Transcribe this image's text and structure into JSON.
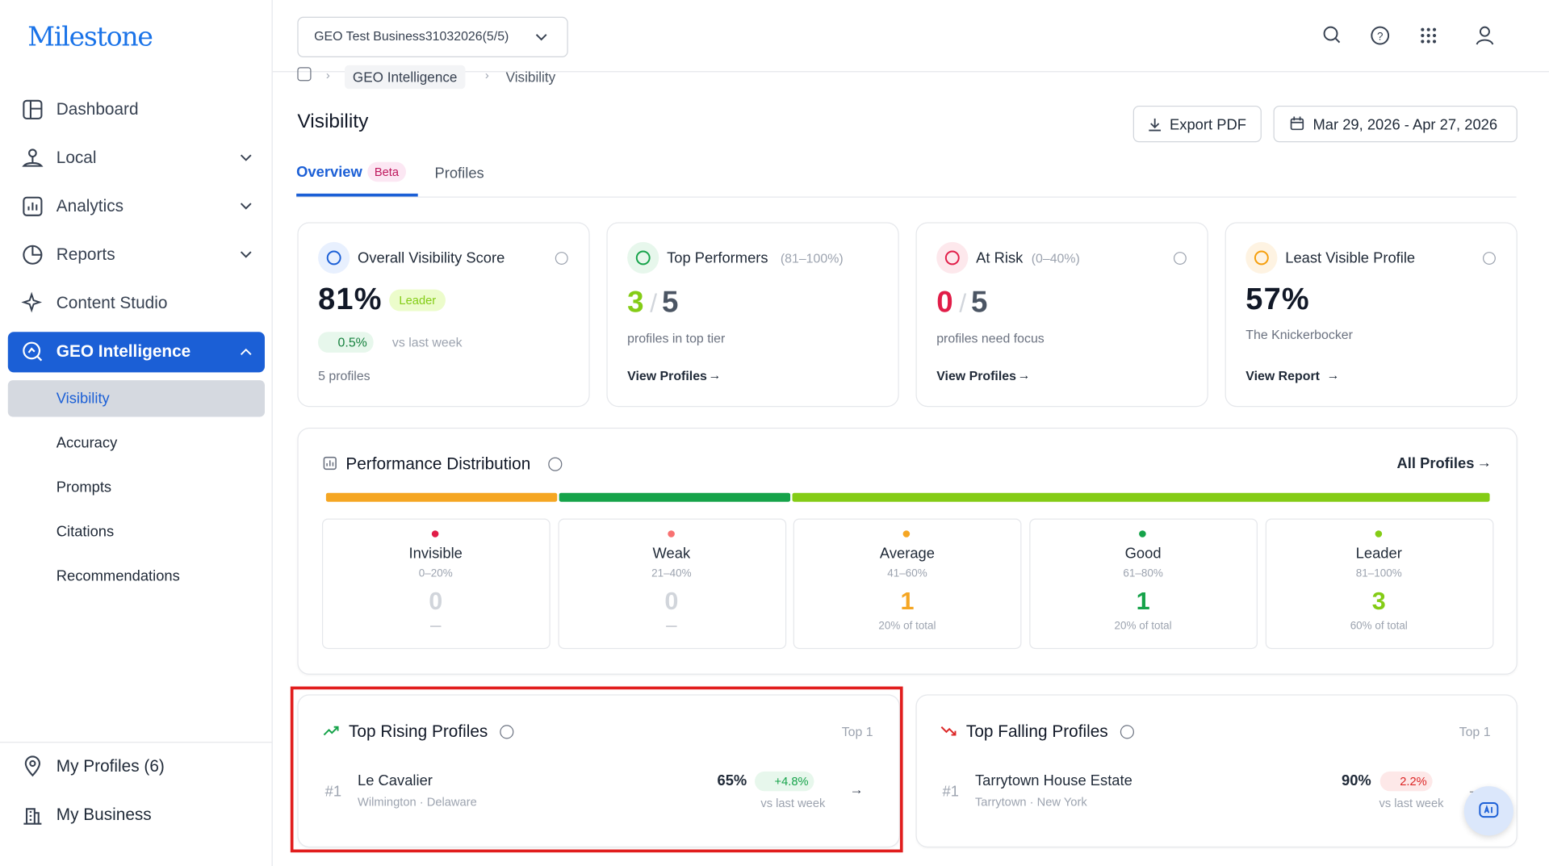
{
  "sidebar": {
    "logo": "Milestone",
    "nav": [
      "Dashboard",
      "Local",
      "Analytics",
      "Reports",
      "Content Studio",
      "GEO Intelligence"
    ],
    "subnav": [
      "Visibility",
      "Accuracy",
      "Prompts",
      "Citations",
      "Recommendations"
    ],
    "bottom": [
      "My Profiles (6)",
      "My Business"
    ]
  },
  "header": {
    "business": "GEO Test Business31032026(5/5)"
  },
  "breadcrumb": [
    "GEO Intelligence",
    "Visibility"
  ],
  "page": {
    "title": "Visibility",
    "export": "Export PDF",
    "date_range": "Mar 29, 2026 - Apr 27, 2026",
    "tabs": [
      {
        "label": "Overview",
        "badge": "Beta"
      },
      {
        "label": "Profiles"
      }
    ]
  },
  "cards": [
    {
      "title": "Overall Visibility Score",
      "value": "81%",
      "badge": "Leader",
      "change": "0.5%",
      "change_note": "vs last week",
      "footer": "5 profiles"
    },
    {
      "title": "Top Performers",
      "range": "(81–100%)",
      "value": "3",
      "total": "5",
      "note": "profiles in top tier",
      "link": "View Profiles"
    },
    {
      "title": "At Risk",
      "range": "(0–40%)",
      "value": "0",
      "total": "5",
      "note": "profiles need focus",
      "link": "View Profiles"
    },
    {
      "title": "Least Visible Profile",
      "value": "57%",
      "note": "The Knickerbocker",
      "link": "View Report"
    }
  ],
  "distribution": {
    "title": "Performance Distribution",
    "link": "All Profiles",
    "segments": [
      {
        "name": "Invisible",
        "range": "0–20%",
        "count": 0,
        "share": "—",
        "color": "#e11d48"
      },
      {
        "name": "Weak",
        "range": "21–40%",
        "count": 0,
        "share": "—",
        "color": "#f87171"
      },
      {
        "name": "Average",
        "range": "41–60%",
        "count": 1,
        "share": "20% of total",
        "color": "#f5a623"
      },
      {
        "name": "Good",
        "range": "61–80%",
        "count": 1,
        "share": "20% of total",
        "color": "#16a34a"
      },
      {
        "name": "Leader",
        "range": "81–100%",
        "count": 3,
        "share": "60% of total",
        "color": "#84cc16"
      }
    ]
  },
  "rising": {
    "title": "Top Rising Profiles",
    "tag": "Top 1",
    "items": [
      {
        "rank": "#1",
        "name": "Le Cavalier",
        "location": "Wilmington · Delaware",
        "score": "65%",
        "change": "+4.8%",
        "note": "vs last week"
      }
    ]
  },
  "falling": {
    "title": "Top Falling Profiles",
    "tag": "Top 1",
    "items": [
      {
        "rank": "#1",
        "name": "Tarrytown House Estate",
        "location": "Tarrytown · New York",
        "score": "90%",
        "change": "2.2%",
        "note": "vs last week"
      }
    ]
  }
}
